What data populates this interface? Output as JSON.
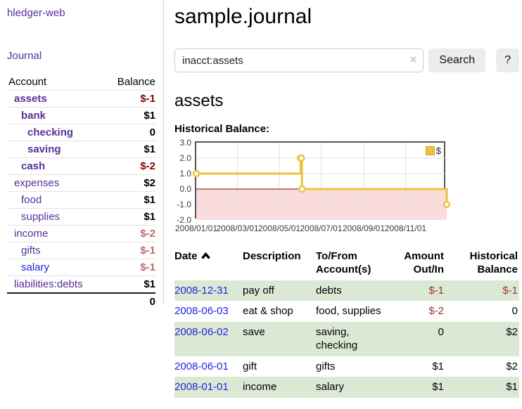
{
  "sidebar": {
    "app_title": "hledger-web",
    "nav": [
      {
        "label": "Journal"
      }
    ],
    "accounts_table": {
      "headers": {
        "account": "Account",
        "balance": "Balance"
      },
      "rows": [
        {
          "account": "assets",
          "balance": "$-1"
        },
        {
          "account": "bank",
          "balance": "$1"
        },
        {
          "account": "checking",
          "balance": "0"
        },
        {
          "account": "saving",
          "balance": "$1"
        },
        {
          "account": "cash",
          "balance": "$-2"
        },
        {
          "account": "expenses",
          "balance": "$2"
        },
        {
          "account": "food",
          "balance": "$1"
        },
        {
          "account": "supplies",
          "balance": "$1"
        },
        {
          "account": "income",
          "balance": "$-2"
        },
        {
          "account": "gifts",
          "balance": "$-1"
        },
        {
          "account": "salary",
          "balance": "$-1"
        },
        {
          "account": "liabilities:debts",
          "balance": "$1"
        }
      ],
      "total": "0"
    }
  },
  "main": {
    "title": "sample.journal",
    "account_heading": "assets"
  },
  "search": {
    "value": "inacct:assets",
    "clear_icon": "×",
    "button_label": "Search",
    "help_label": "?"
  },
  "chart_data": {
    "type": "line",
    "style": "step-after",
    "title": "Historical Balance:",
    "series": [
      {
        "name": "$",
        "color": "#edc240",
        "points": [
          [
            "2008/01/01",
            1.0
          ],
          [
            "2008/06/01",
            2.0
          ],
          [
            "2008/06/02",
            2.0
          ],
          [
            "2008/06/03",
            0.0
          ],
          [
            "2008/12/31",
            -1.0
          ]
        ]
      }
    ],
    "x_ticks": [
      "2008/01/01",
      "2008/03/01",
      "2008/05/01",
      "2008/07/01",
      "2008/09/01",
      "2008/11/01"
    ],
    "y_ticks": [
      3.0,
      2.0,
      1.0,
      0.0,
      -1.0,
      -2.0
    ],
    "xlim": [
      "2008/01/01",
      "2008/12/31"
    ],
    "ylim": [
      -2.0,
      3.0
    ],
    "grid": true,
    "grid_color": "#e0e0e0",
    "negative_region_color": "#fbdcdc",
    "zero_line_color": "#8b0000",
    "legend_position": "top-right"
  },
  "register": {
    "headers": {
      "date": "Date",
      "description": "Description",
      "account": "To/From Account(s)",
      "amount": "Amount Out/In",
      "balance": "Historical Balance"
    },
    "rows": [
      {
        "date": "2008-12-31",
        "description": "pay off",
        "accounts": "debts",
        "amount": "$-1",
        "balance": "$-1"
      },
      {
        "date": "2008-06-03",
        "description": "eat & shop",
        "accounts": "food, supplies",
        "amount": "$-2",
        "balance": "0"
      },
      {
        "date": "2008-06-02",
        "description": "save",
        "accounts": "saving, checking",
        "amount": "0",
        "balance": "$2"
      },
      {
        "date": "2008-06-01",
        "description": "gift",
        "accounts": "gifts",
        "amount": "$1",
        "balance": "$2"
      },
      {
        "date": "2008-01-01",
        "description": "income",
        "accounts": "salary",
        "amount": "$1",
        "balance": "$1"
      }
    ]
  }
}
